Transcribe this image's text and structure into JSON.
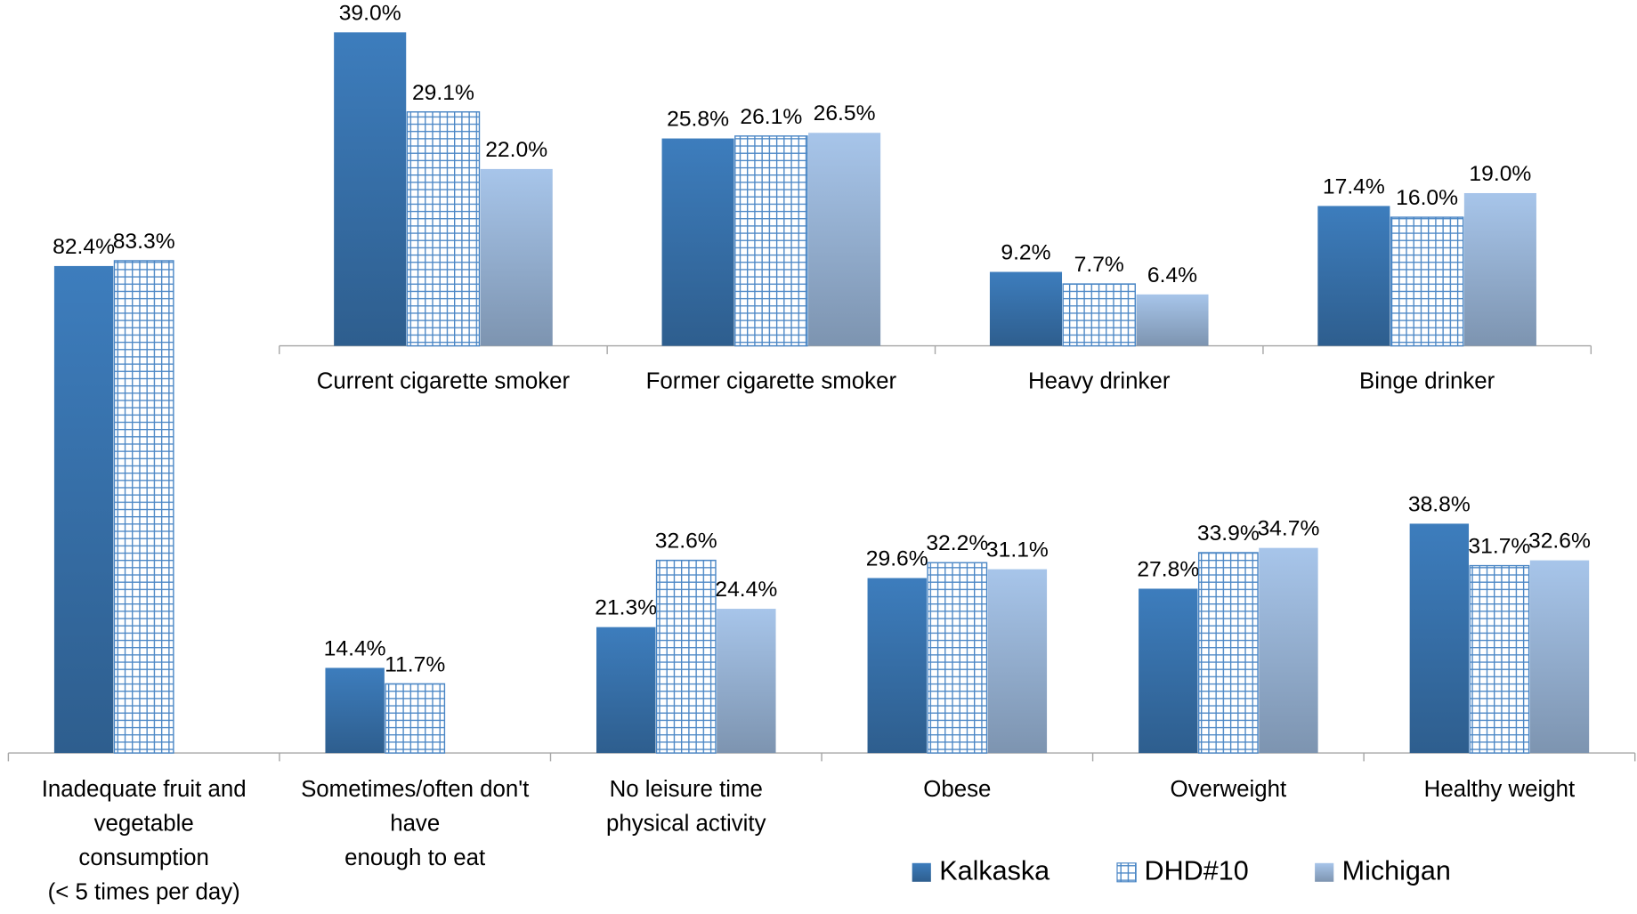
{
  "chart_data": [
    {
      "type": "bar",
      "categories": [
        "Inadequate fruit and\nvegetable\nconsumption\n(< 5 times per day)",
        "Sometimes/often don't\nhave\nenough to eat",
        "No leisure time\nphysical activity",
        "Obese",
        "Overweight",
        "Healthy weight"
      ],
      "series": [
        {
          "name": "Kalkaska",
          "color": "#3d7dbd",
          "style": "gradient",
          "values": [
            82.4,
            14.4,
            21.3,
            29.6,
            27.8,
            38.8
          ],
          "value_labels": [
            "82.4%",
            "14.4%",
            "21.3%",
            "29.6%",
            "27.8%",
            "38.8%"
          ]
        },
        {
          "name": "DHD#10",
          "color": "#4a86c5",
          "style": "grid",
          "values": [
            83.3,
            11.7,
            32.6,
            32.2,
            33.9,
            31.7
          ],
          "value_labels": [
            "83.3%",
            "11.7%",
            "32.6%",
            "32.2%",
            "33.9%",
            "31.7%"
          ]
        },
        {
          "name": "Michigan",
          "color": "#a7c5ea",
          "style": "gradient",
          "values": [
            null,
            null,
            24.4,
            31.1,
            34.7,
            32.6
          ],
          "value_labels": [
            null,
            null,
            "24.4%",
            "31.1%",
            "34.7%",
            "32.6%"
          ]
        }
      ],
      "legend": "bottom-right"
    },
    {
      "type": "bar",
      "categories": [
        "Current cigarette smoker",
        "Former cigarette smoker",
        "Heavy drinker",
        "Binge drinker"
      ],
      "series": [
        {
          "color": "#3d7dbd",
          "style": "gradient",
          "values": [
            39.0,
            25.8,
            9.2,
            17.4
          ],
          "value_labels": [
            "39.0%",
            "25.8%",
            "9.2%",
            "17.4%"
          ]
        },
        {
          "color": "#4a86c5",
          "style": "grid",
          "values": [
            29.1,
            26.1,
            7.7,
            16.0
          ],
          "value_labels": [
            "29.1%",
            "26.1%",
            "7.7%",
            "16.0%"
          ]
        },
        {
          "color": "#a7c5ea",
          "style": "gradient",
          "values": [
            22.0,
            26.5,
            6.4,
            19.0
          ],
          "value_labels": [
            "22.0%",
            "26.5%",
            "6.4%",
            "19.0%"
          ]
        }
      ]
    }
  ]
}
